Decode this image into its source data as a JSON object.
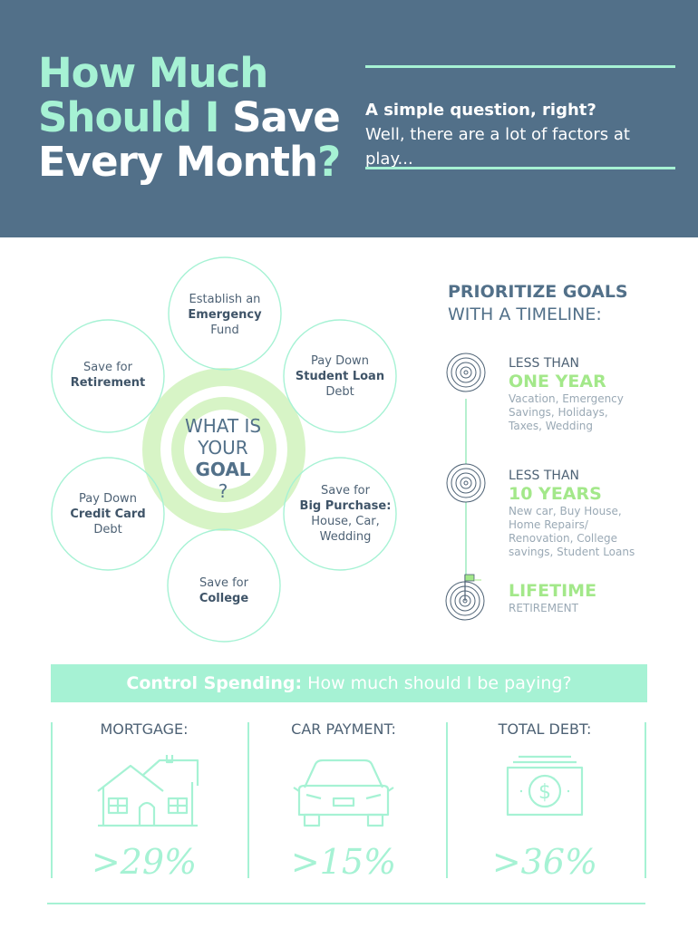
{
  "header": {
    "title_line1": "How Much",
    "title_line2_a": "Should I ",
    "title_line2_b": "Save",
    "title_line3_a": "Every Month",
    "title_line3_b": "?",
    "subtitle_bold": "A simple question, right?",
    "subtitle_normal": "Well, there are a lot of factors at play..."
  },
  "center": {
    "line1": "WHAT IS",
    "line2": "YOUR",
    "line3_bold": "GOAL",
    "line3_rest": "?"
  },
  "goals": {
    "emergency": {
      "l1": "Establish an",
      "l2": "Emergency",
      "l3": "Fund"
    },
    "student_loan": {
      "l1": "Pay Down",
      "l2": "Student Loan",
      "l3": "Debt"
    },
    "big_purchase": {
      "l1": "Save for",
      "l2": "Big Purchase:",
      "l3": "House, Car,",
      "l4": "Wedding"
    },
    "college": {
      "l1": "Save for",
      "l2": "College"
    },
    "credit_card": {
      "l1": "Pay Down",
      "l2": "Credit Card",
      "l3": "Debt"
    },
    "retirement": {
      "l1": "Save for",
      "l2": "Retirement"
    }
  },
  "timeline": {
    "heading_bold": "PRIORITIZE GOALS",
    "heading_normal": "WITH A TIMELINE:",
    "items": [
      {
        "pre": "LESS THAN",
        "big": "ONE YEAR",
        "desc": [
          "Vacation, Emergency",
          "Savings, Holidays,",
          "Taxes, Wedding"
        ]
      },
      {
        "pre": "LESS THAN",
        "big": "10 YEARS",
        "desc": [
          "New car, Buy House,",
          "Home Repairs/",
          "Renovation, College",
          "savings, Student Loans"
        ]
      },
      {
        "big": "LIFETIME",
        "sub": "RETIREMENT"
      }
    ]
  },
  "control": {
    "bold": "Control Spending:",
    "rest": " How much should I be paying?",
    "columns": [
      {
        "label": "MORTGAGE:",
        "value": ">29%",
        "icon": "house-icon"
      },
      {
        "label": "CAR PAYMENT:",
        "value": ">15%",
        "icon": "car-icon"
      },
      {
        "label": "TOTAL DEBT:",
        "value": ">36%",
        "icon": "money-icon"
      }
    ]
  },
  "colors": {
    "header_bg": "#527089",
    "mint": "#a6f2d4",
    "lime": "#a3e88a",
    "text_dark": "#4e6275"
  }
}
